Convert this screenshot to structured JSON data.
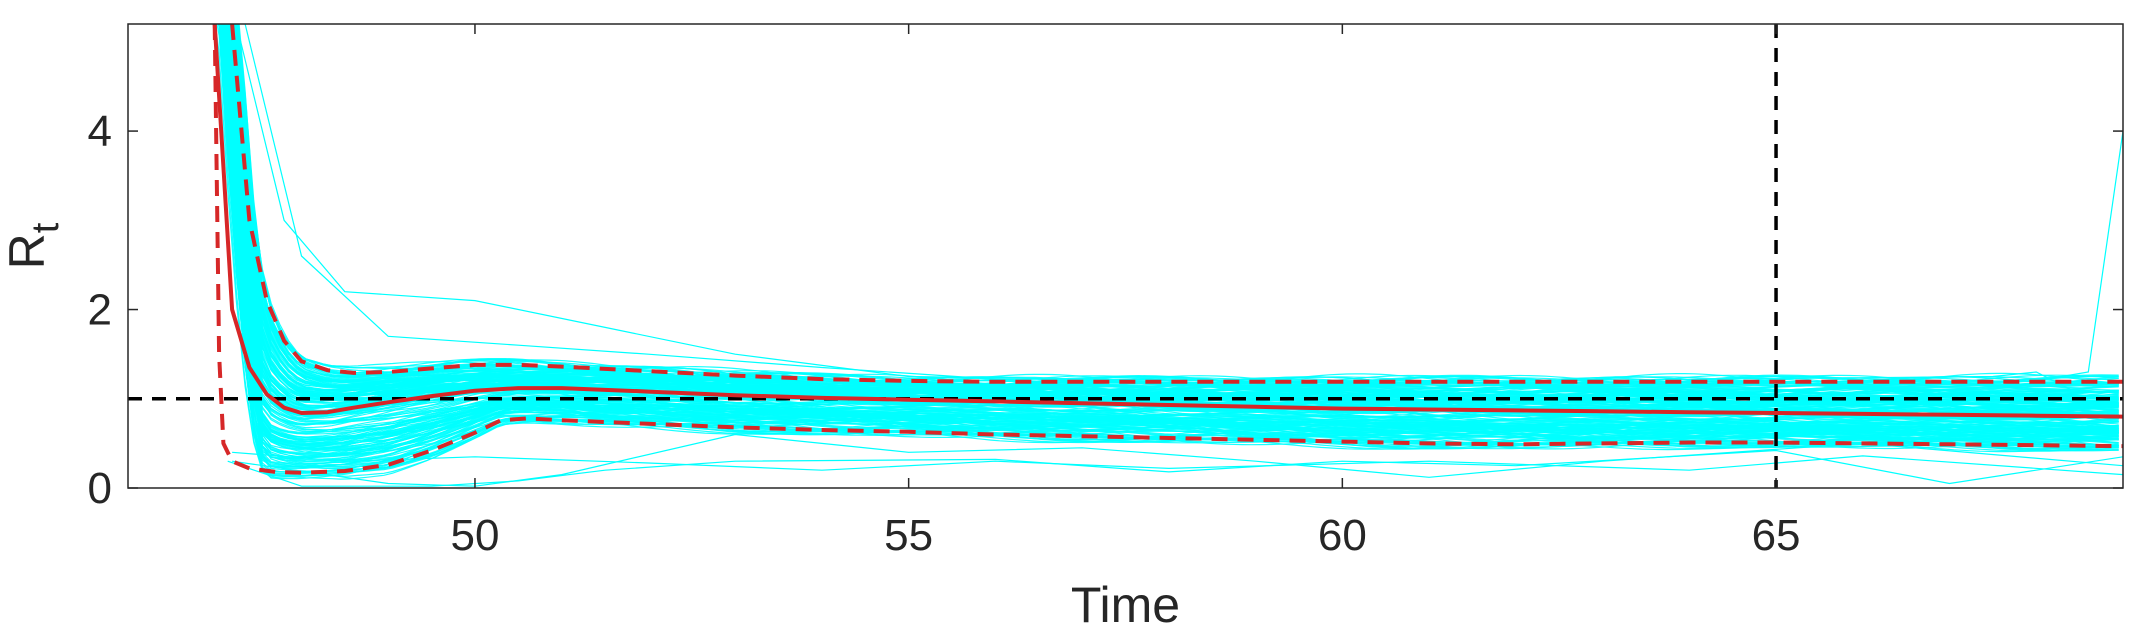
{
  "chart_data": {
    "type": "line",
    "xlabel": "Time",
    "ylabel": {
      "main": "R",
      "sub": "t"
    },
    "xlim": [
      46,
      69
    ],
    "ylim": [
      0,
      5.2
    ],
    "xticks": [
      "50",
      "55",
      "60",
      "65"
    ],
    "yticks": [
      "0",
      "2",
      "4"
    ],
    "xtick_values": [
      50,
      55,
      60,
      65
    ],
    "ytick_values": [
      0,
      2,
      4
    ],
    "grid": false,
    "reference_lines": {
      "horizontal_y": 1,
      "vertical_x": 65,
      "style": "dashed",
      "color": "#000000"
    },
    "ensemble": {
      "color": "#00ffff",
      "description_count": 200
    },
    "series": [
      {
        "role": "median",
        "style": "solid",
        "color": "#d62728",
        "x": [
          47.0,
          47.1,
          47.2,
          47.4,
          47.6,
          47.8,
          48.0,
          48.3,
          48.6,
          49.0,
          49.5,
          50.0,
          50.5,
          51.0,
          52.0,
          53.0,
          54.0,
          55.0,
          56.0,
          57.0,
          58.0,
          59.0,
          60.0,
          61.0,
          62.0,
          63.0,
          64.0,
          65.0,
          66.0,
          67.0,
          68.0,
          69.0
        ],
        "y": [
          5.2,
          3.6,
          2.0,
          1.35,
          1.05,
          0.9,
          0.84,
          0.85,
          0.9,
          0.96,
          1.03,
          1.09,
          1.12,
          1.12,
          1.08,
          1.04,
          1.01,
          0.99,
          0.97,
          0.95,
          0.93,
          0.91,
          0.89,
          0.88,
          0.87,
          0.86,
          0.85,
          0.84,
          0.83,
          0.82,
          0.81,
          0.8
        ]
      },
      {
        "role": "upper-bound",
        "style": "dashed",
        "color": "#d62728",
        "x": [
          47.2,
          47.4,
          47.6,
          47.8,
          48.0,
          48.3,
          48.6,
          49.0,
          49.5,
          50.0,
          50.5,
          51.0,
          52.0,
          53.0,
          54.0,
          55.0,
          56.0,
          58.0,
          60.0,
          62.0,
          64.0,
          66.0,
          68.0,
          69.0
        ],
        "y": [
          5.2,
          3.0,
          2.1,
          1.65,
          1.42,
          1.32,
          1.29,
          1.3,
          1.34,
          1.38,
          1.38,
          1.36,
          1.31,
          1.26,
          1.22,
          1.2,
          1.19,
          1.19,
          1.19,
          1.19,
          1.19,
          1.19,
          1.19,
          1.19
        ]
      },
      {
        "role": "lower-bound",
        "style": "dashed",
        "color": "#d62728",
        "x": [
          47.0,
          47.05,
          47.1,
          47.2,
          47.4,
          47.7,
          48.0,
          48.5,
          49.0,
          49.5,
          50.0,
          50.3,
          50.6,
          51.0,
          52.0,
          53.0,
          54.0,
          55.0,
          56.0,
          57.0,
          58.0,
          59.0,
          60.0,
          61.0,
          62.0,
          63.0,
          64.0,
          65.0,
          66.0,
          67.0,
          68.0,
          69.0
        ],
        "y": [
          5.2,
          1.5,
          0.5,
          0.3,
          0.22,
          0.18,
          0.17,
          0.19,
          0.26,
          0.42,
          0.62,
          0.76,
          0.78,
          0.76,
          0.72,
          0.68,
          0.65,
          0.63,
          0.6,
          0.58,
          0.56,
          0.54,
          0.52,
          0.5,
          0.49,
          0.5,
          0.51,
          0.51,
          0.5,
          0.49,
          0.48,
          0.47
        ]
      }
    ]
  }
}
